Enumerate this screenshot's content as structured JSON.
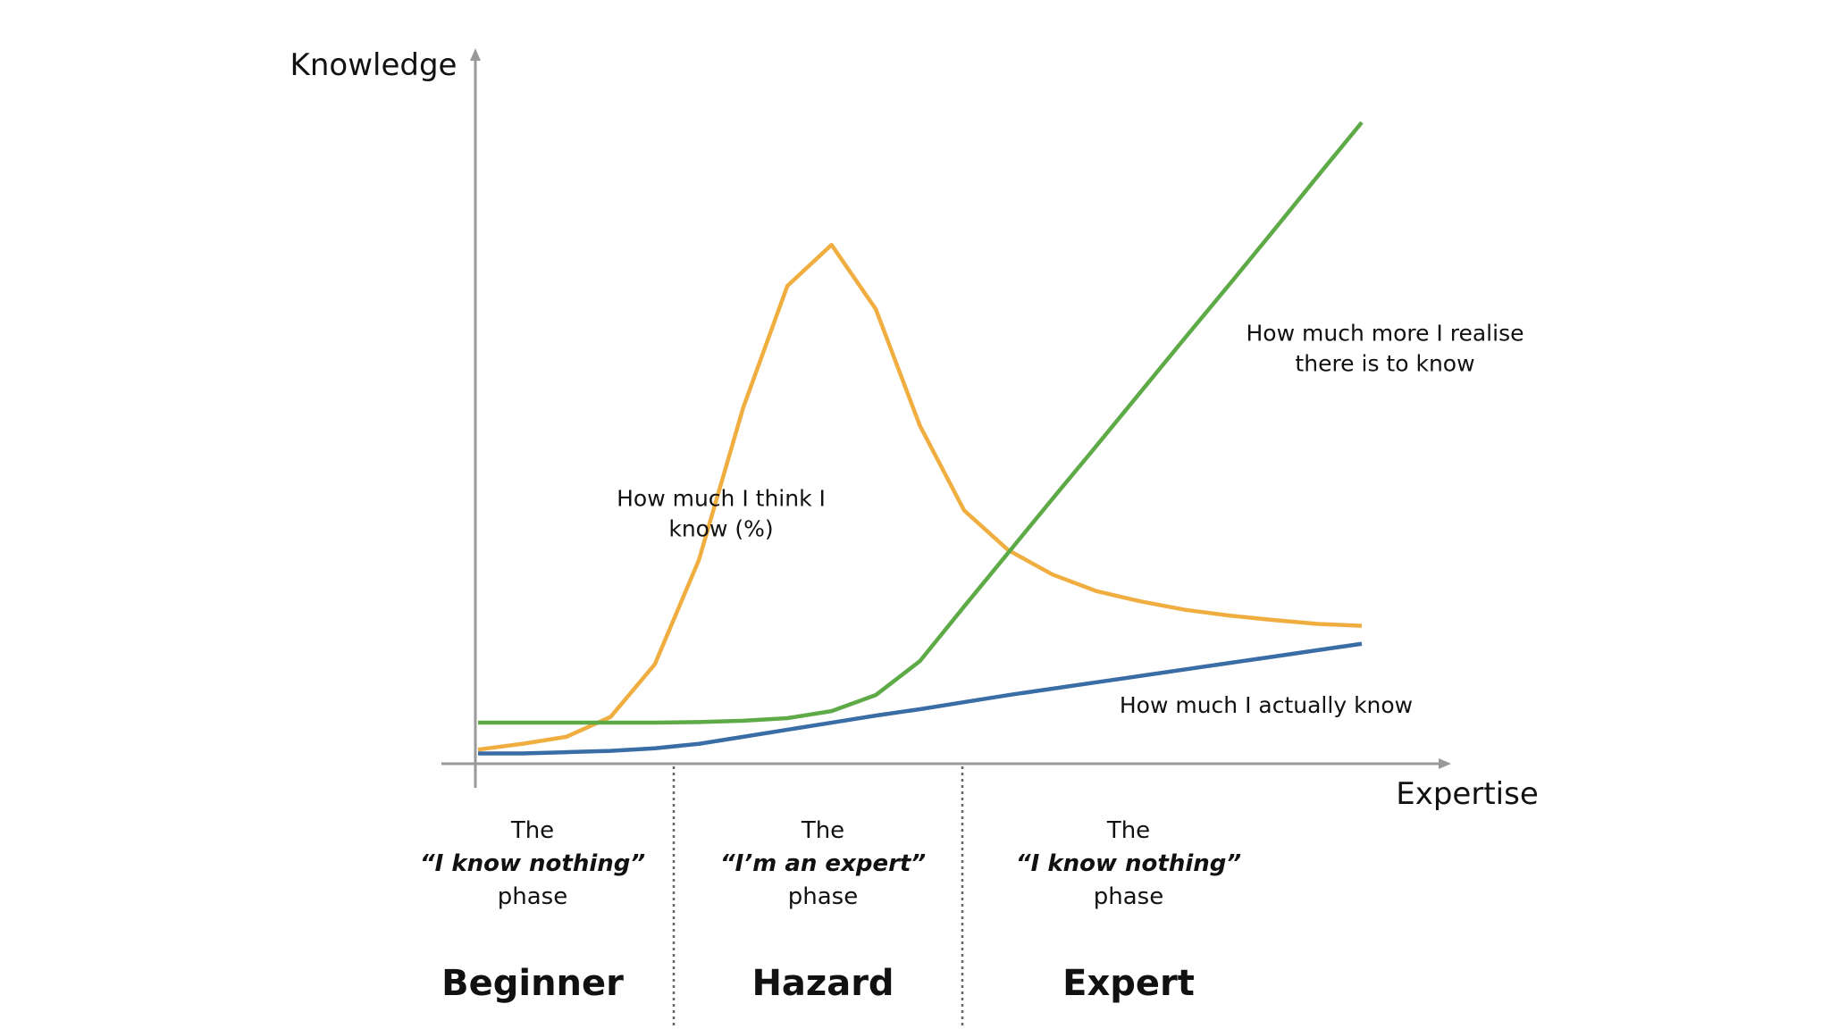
{
  "chart_data": {
    "type": "line",
    "x_label": "Expertise",
    "y_label": "Knowledge",
    "x": [
      0,
      1,
      2,
      3,
      4,
      5,
      6,
      7,
      8,
      9,
      10,
      11,
      12,
      13,
      14,
      15,
      16,
      17,
      18,
      19,
      20
    ],
    "xlim": [
      0,
      20
    ],
    "ylim": [
      0,
      100
    ],
    "series": [
      {
        "name": "How much I think I\nknow (%)",
        "color": "#efae3f",
        "values": [
          2.2,
          3.1,
          4.2,
          7.3,
          15.5,
          31.8,
          55.5,
          74.5,
          80.9,
          70.9,
          52.7,
          39.5,
          33.3,
          29.5,
          26.9,
          25.3,
          24,
          23.1,
          22.4,
          21.8,
          21.5
        ]
      },
      {
        "name": "How much more I realise\nthere is to know",
        "color": "#5daa47",
        "values": [
          6.4,
          6.4,
          6.4,
          6.4,
          6.4,
          6.5,
          6.7,
          7.1,
          8.2,
          10.7,
          16,
          24.5,
          32.9,
          41.3,
          49.6,
          58,
          66.4,
          74.7,
          83.1,
          91.6,
          100
        ]
      },
      {
        "name": "How much I actually know",
        "color": "#3a6ca6",
        "values": [
          1.6,
          1.6,
          1.8,
          2,
          2.4,
          3.1,
          4.2,
          5.3,
          6.4,
          7.5,
          8.5,
          9.6,
          10.7,
          11.7,
          12.7,
          13.7,
          14.7,
          15.7,
          16.7,
          17.7,
          18.7
        ]
      }
    ]
  },
  "phases": [
    {
      "intro": "The",
      "quote": "“I know nothing”",
      "suffix": "phase",
      "stage": "Beginner"
    },
    {
      "intro": "The",
      "quote": "“I’m an expert”",
      "suffix": "phase",
      "stage": "Hazard"
    },
    {
      "intro": "The",
      "quote": "“I know nothing”",
      "suffix": "phase",
      "stage": "Expert"
    }
  ]
}
